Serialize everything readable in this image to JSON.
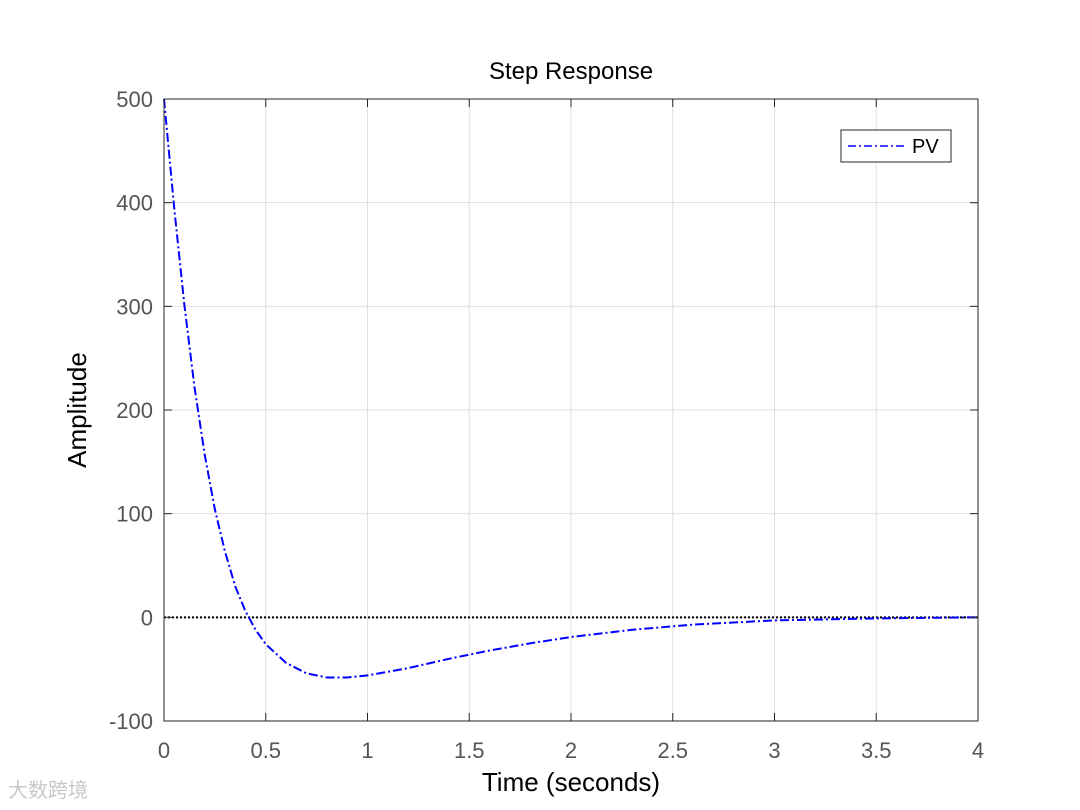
{
  "chart_data": {
    "type": "line",
    "title": "Step Response",
    "xlabel": "Time (seconds)",
    "ylabel": "Amplitude",
    "xlim": [
      0,
      4
    ],
    "ylim": [
      -100,
      500
    ],
    "xticks": [
      0,
      0.5,
      1,
      1.5,
      2,
      2.5,
      3,
      3.5,
      4
    ],
    "xtick_labels": [
      "0",
      "0.5",
      "1",
      "1.5",
      "2",
      "2.5",
      "3",
      "3.5",
      "4"
    ],
    "yticks": [
      -100,
      0,
      100,
      200,
      300,
      400,
      500
    ],
    "ytick_labels": [
      "-100",
      "0",
      "100",
      "200",
      "300",
      "400",
      "500"
    ],
    "grid": true,
    "legend_position": "top-right",
    "reference_line": {
      "y": 0,
      "style": "dotted",
      "color": "#000000"
    },
    "series": [
      {
        "name": "PV",
        "color": "#0000ff",
        "style": "dash-dot",
        "x": [
          0,
          0.05,
          0.1,
          0.15,
          0.2,
          0.25,
          0.3,
          0.35,
          0.4,
          0.45,
          0.5,
          0.6,
          0.7,
          0.8,
          0.85,
          0.9,
          1.0,
          1.2,
          1.4,
          1.6,
          1.8,
          2.0,
          2.3,
          2.6,
          3.0,
          3.5,
          4.0
        ],
        "y": [
          500,
          395,
          302,
          222,
          157,
          104,
          63,
          30,
          6,
          -12,
          -26,
          -44,
          -54,
          -58,
          -58,
          -58,
          -56,
          -49,
          -40,
          -32,
          -25,
          -19,
          -12,
          -7,
          -3,
          -1,
          0
        ]
      }
    ]
  },
  "watermark": "大数跨境"
}
